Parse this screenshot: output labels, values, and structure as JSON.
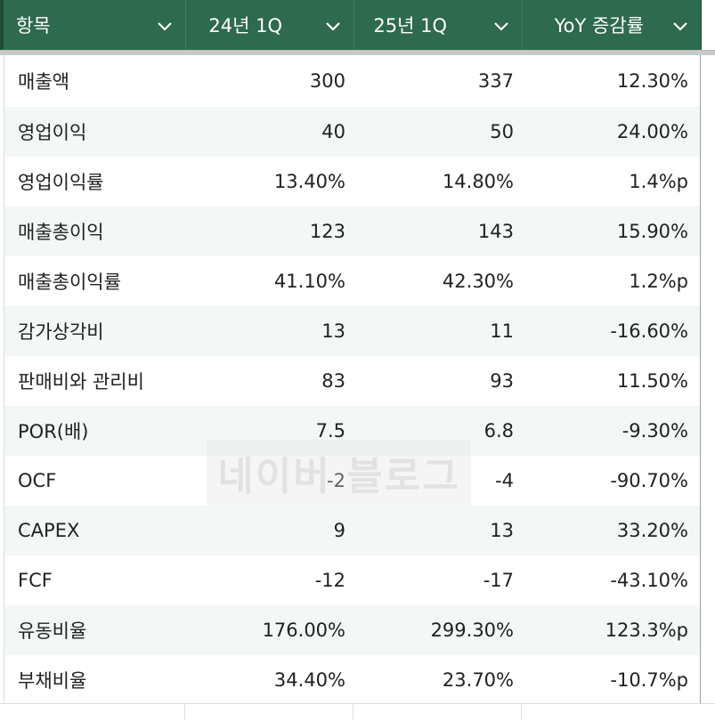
{
  "columns": [
    "항목",
    "24년 1Q",
    "25년 1Q",
    "YoY 증감률"
  ],
  "rows": [
    [
      "매출액",
      "300",
      "337",
      "12.30%"
    ],
    [
      "영업이익",
      "40",
      "50",
      "24.00%"
    ],
    [
      "영업이익률",
      "13.40%",
      "14.80%",
      "1.4%p"
    ],
    [
      "매출총이익",
      "123",
      "143",
      "15.90%"
    ],
    [
      "매출총이익률",
      "41.10%",
      "42.30%",
      "1.2%p"
    ],
    [
      "감가상각비",
      "13",
      "11",
      "-16.60%"
    ],
    [
      "판매비와 관리비",
      "83",
      "93",
      "11.50%"
    ],
    [
      "POR(배)",
      "7.5",
      "6.8",
      "-9.30%"
    ],
    [
      "OCF",
      "-2",
      "-4",
      "-90.70%"
    ],
    [
      "CAPEX",
      "9",
      "13",
      "33.20%"
    ],
    [
      "FCF",
      "-12",
      "-17",
      "-43.10%"
    ],
    [
      "유동비율",
      "176.00%",
      "299.30%",
      "123.3%p"
    ],
    [
      "부채비율",
      "34.40%",
      "23.70%",
      "-10.7%p"
    ]
  ],
  "header_icon": "chevron-down-icon",
  "watermark_text": "네이버 블로그",
  "colors": {
    "header_bg": "#2e6a4d",
    "header_text": "#ffffff",
    "band_bg": "#f3f7f5",
    "text": "#202124"
  }
}
